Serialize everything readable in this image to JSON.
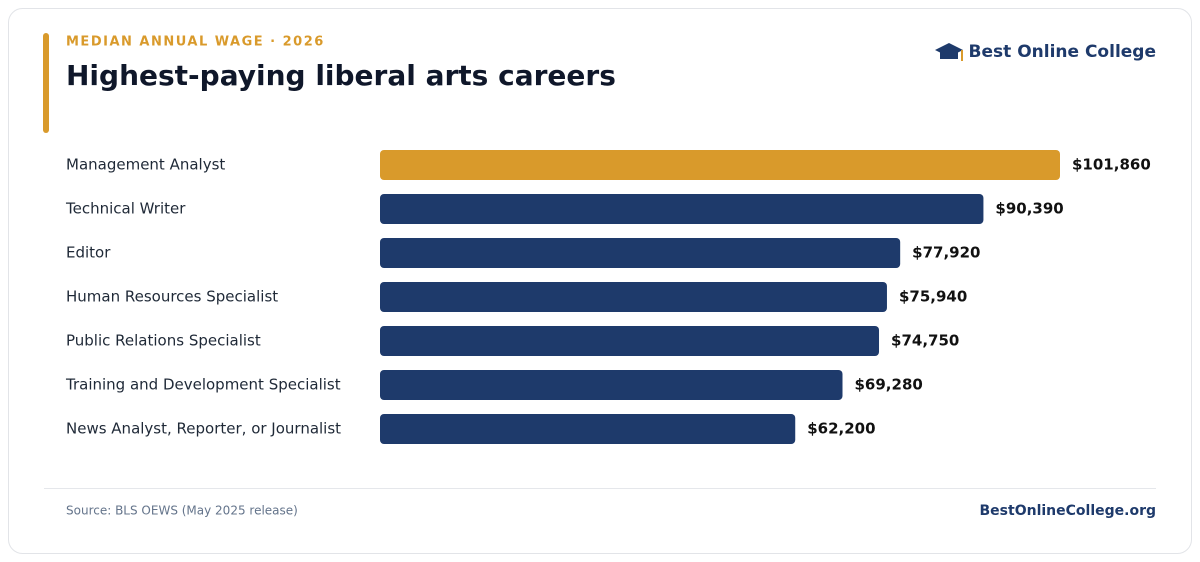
{
  "chart_data": {
    "type": "hbar",
    "kicker": "MEDIAN ANNUAL WAGE · 2026",
    "title": "Highest-paying liberal arts careers",
    "brand": "Best Online College",
    "categories": [
      "Management Analyst",
      "Technical Writer",
      "Editor",
      "Human Resources Specialist",
      "Public Relations Specialist",
      "Training and Development Specialist",
      "News Analyst, Reporter, or Journalist"
    ],
    "values": [
      101860,
      90390,
      77920,
      75940,
      74750,
      69280,
      62200
    ],
    "value_labels": [
      "$101,860",
      "$90,390",
      "$77,920",
      "$75,940",
      "$74,750",
      "$69,280",
      "$62,200"
    ],
    "colors": [
      "#d99a2b",
      "#1e3a6b",
      "#1e3a6b",
      "#1e3a6b",
      "#1e3a6b",
      "#1e3a6b",
      "#1e3a6b"
    ],
    "source": "Source: BLS OEWS (May 2025 release)",
    "site": "BestOnlineCollege.org"
  }
}
